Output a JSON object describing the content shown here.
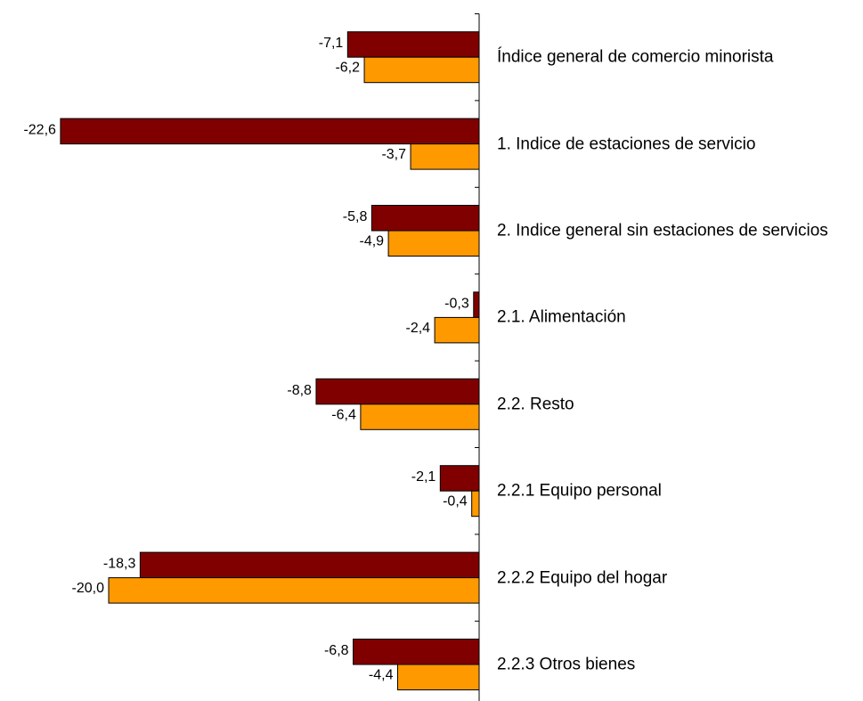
{
  "chart_data": {
    "type": "barh",
    "categories": [
      "Índice general de comercio minorista",
      "1. Indice de estaciones de servicio",
      "2. Indice general sin estaciones de servicios",
      "2.1. Alimentación",
      "2.2. Resto",
      "2.2.1 Equipo personal",
      "2.2.2 Equipo del hogar",
      "2.2.3 Otros bienes"
    ],
    "series": [
      {
        "color": "#800000",
        "values": [
          -7.1,
          -22.6,
          -5.8,
          -0.3,
          -8.8,
          -2.1,
          -18.3,
          -6.8
        ],
        "value_labels": [
          "-7,1",
          "-22,6",
          "-5,8",
          "-0,3",
          "-8,8",
          "-2,1",
          "-18,3",
          "-6,8"
        ]
      },
      {
        "color": "#ff9900",
        "values": [
          -6.2,
          -3.7,
          -4.9,
          -2.4,
          -6.4,
          -0.4,
          -20.0,
          -4.4
        ],
        "value_labels": [
          "-6,2",
          "-3,7",
          "-4,9",
          "-2,4",
          "-6,4",
          "-0,4",
          "-20,0",
          "-4,4"
        ]
      }
    ],
    "xlim": [
      -25,
      0
    ]
  }
}
